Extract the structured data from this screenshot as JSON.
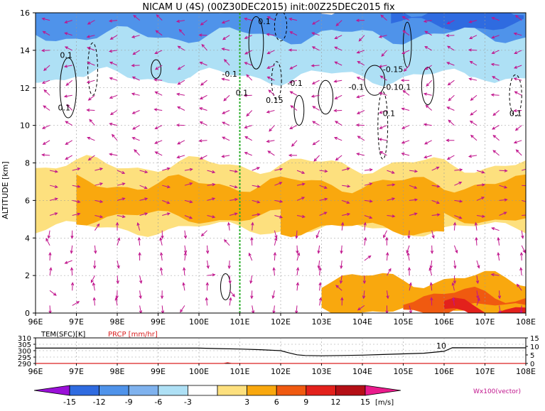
{
  "chart_data": [
    {
      "type": "heatmap",
      "title": "NICAM U (4S) (00Z30DEC2015) init:00Z25DEC2015 fix",
      "ylabel": "ALTITUDE [km]",
      "x_tick_labels": [
        "96E",
        "97E",
        "98E",
        "99E",
        "100E",
        "101E",
        "102E",
        "103E",
        "104E",
        "105E",
        "106E",
        "107E",
        "108E"
      ],
      "y_tick_labels": [
        "0",
        "2",
        "4",
        "6",
        "8",
        "10",
        "12",
        "14",
        "16"
      ],
      "xlim": [
        96,
        108
      ],
      "ylim": [
        0,
        16
      ],
      "grid": true,
      "marker_line_lon": 101,
      "contour_labels": [
        {
          "text": "0.1",
          "lon": 96.75,
          "alt": 13.6
        },
        {
          "text": "0.1",
          "lon": 96.7,
          "alt": 10.8
        },
        {
          "text": "0.1",
          "lon": 101.6,
          "alt": 15.4
        },
        {
          "text": "-0.1",
          "lon": 100.75,
          "alt": 12.6
        },
        {
          "text": "0.1",
          "lon": 101.05,
          "alt": 11.6
        },
        {
          "text": "0.15",
          "lon": 101.85,
          "alt": 11.2
        },
        {
          "text": "-0.1",
          "lon": 102.35,
          "alt": 12.1
        },
        {
          "text": "-0.15",
          "lon": 104.75,
          "alt": 12.85
        },
        {
          "text": "-0.1",
          "lon": 103.85,
          "alt": 11.9
        },
        {
          "text": "-0.10.1",
          "lon": 104.85,
          "alt": 11.9
        },
        {
          "text": "0.1",
          "lon": 104.65,
          "alt": 10.5
        },
        {
          "text": "0.1",
          "lon": 107.75,
          "alt": 10.5
        }
      ],
      "bands": [
        {
          "alt": 15.2,
          "value": -12,
          "lon_start": 96,
          "lon_end": 108
        },
        {
          "alt": 15.8,
          "value": -15,
          "lon_start": 104.7,
          "lon_end": 108
        },
        {
          "alt": 13.5,
          "value": -6,
          "lon_start": 96,
          "lon_end": 108
        },
        {
          "alt": 11.0,
          "value": -3,
          "lon_start": 96,
          "lon_end": 108
        },
        {
          "alt": 6.2,
          "value": 3,
          "lon_start": 96,
          "lon_end": 108
        },
        {
          "alt": 6.0,
          "value": 6,
          "lon_start": 97,
          "lon_end": 108
        },
        {
          "alt": 5.2,
          "value": 6,
          "lon_start": 102,
          "lon_end": 106
        },
        {
          "alt": 1.0,
          "value": 6,
          "lon_start": 103,
          "lon_end": 108
        },
        {
          "alt": 0.6,
          "value": 9,
          "lon_start": 105,
          "lon_end": 108
        },
        {
          "alt": 0.2,
          "value": 12,
          "lon_start": 106,
          "lon_end": 108
        }
      ]
    },
    {
      "type": "line",
      "legend": [
        "TEM(SFC)[K]",
        "PRCP [mm/hr]"
      ],
      "x_tick_labels": [
        "96E",
        "97E",
        "98E",
        "99E",
        "100E",
        "101E",
        "102E",
        "103E",
        "104E",
        "105E",
        "106E",
        "107E",
        "108E"
      ],
      "y_tick_labels_left": [
        "310",
        "305",
        "300",
        "295",
        "290"
      ],
      "y_tick_labels_right": [
        "15",
        "10",
        "5",
        "0"
      ],
      "xlim": [
        96,
        108
      ],
      "ylim_left": [
        290,
        310
      ],
      "ylim_right": [
        0,
        15
      ],
      "inline_label": "10",
      "series": [
        {
          "name": "TEM(SFC)[K]",
          "x": [
            96,
            97,
            98,
            99,
            100,
            100.5,
            101,
            101.5,
            102,
            102.2,
            102.4,
            102.6,
            103,
            103.5,
            104,
            104.5,
            105,
            105.5,
            106,
            106.2,
            107,
            108
          ],
          "values": [
            302,
            302,
            302,
            302,
            302,
            301.6,
            301.3,
            300.8,
            300,
            298.3,
            296.8,
            296.2,
            296,
            296.2,
            296.5,
            297,
            297.5,
            298,
            299.5,
            302.3,
            302.2,
            302.2
          ]
        },
        {
          "name": "PRCP [mm/hr]",
          "x": [
            96,
            100.6,
            100.7,
            100.8,
            108
          ],
          "values": [
            0,
            0,
            0.4,
            0,
            0
          ]
        }
      ]
    },
    {
      "type": "table",
      "colorbar_values": [
        "-15",
        "-12",
        "-9",
        "-6",
        "-3",
        "3",
        "6",
        "9",
        "12",
        "15"
      ],
      "unit": "[m/s]",
      "colors": [
        "#9a10d8",
        "#2f6be0",
        "#4f93ea",
        "#7fb2ee",
        "#aee0f5",
        "#ffffff",
        "#fde07e",
        "#f9a80e",
        "#f05a10",
        "#e3211c",
        "#b40f16",
        "#ea1b8c"
      ],
      "vector_label": "Wx100(vector)"
    }
  ],
  "colors": {
    "arrow": "#c0148c",
    "marker_line": "#2fb02f",
    "prcp_label": "#d92020"
  }
}
